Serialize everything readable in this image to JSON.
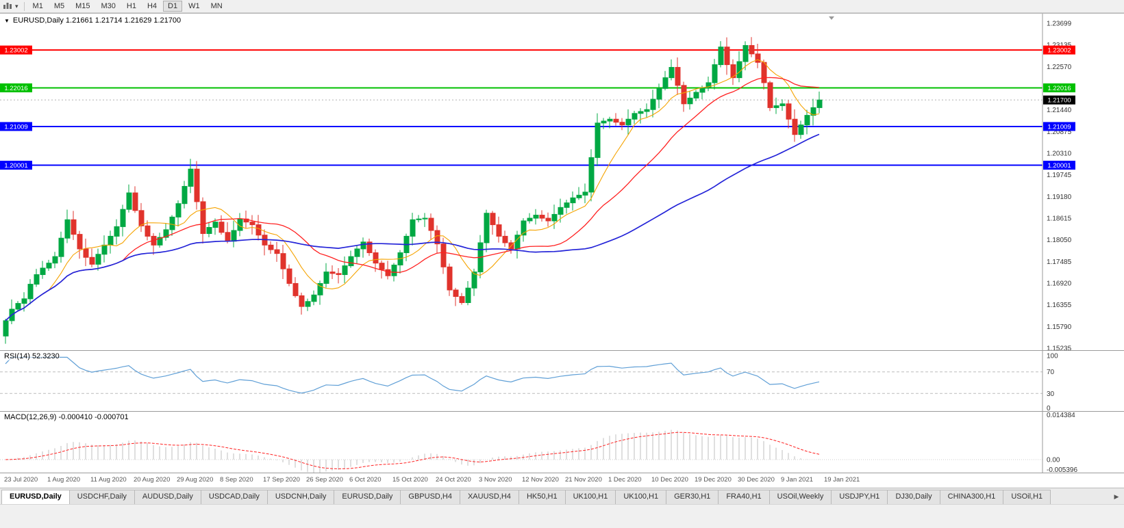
{
  "toolbar": {
    "timeframes": [
      "M1",
      "M5",
      "M15",
      "M30",
      "H1",
      "H4",
      "D1",
      "W1",
      "MN"
    ],
    "active": "D1"
  },
  "chart": {
    "title_line": "EURUSD,Daily 1.21661 1.21714 1.21629 1.21700",
    "current_price_label": "1.21700",
    "price_axis": [
      "1.23699",
      "1.23135",
      "1.22570",
      "1.22005",
      "1.21440",
      "1.20875",
      "1.20310",
      "1.19745",
      "1.19180",
      "1.18615",
      "1.18050",
      "1.17485",
      "1.16920",
      "1.16355",
      "1.15790",
      "1.15235"
    ]
  },
  "chart_data": {
    "type": "candlestick",
    "symbol": "EURUSD",
    "timeframe": "Daily",
    "ohlc_display": {
      "open": "1.21661",
      "high": "1.21714",
      "low": "1.21629",
      "close": "1.21700"
    },
    "price_range": [
      1.15235,
      1.23699
    ],
    "x_labels": [
      "23 Jul 2020",
      "1 Aug 2020",
      "11 Aug 2020",
      "20 Aug 2020",
      "29 Aug 2020",
      "8 Sep 2020",
      "17 Sep 2020",
      "26 Sep 2020",
      "6 Oct 2020",
      "15 Oct 2020",
      "24 Oct 2020",
      "3 Nov 2020",
      "12 Nov 2020",
      "21 Nov 2020",
      "1 Dec 2020",
      "10 Dec 2020",
      "19 Dec 2020",
      "30 Dec 2020",
      "9 Jan 2021",
      "19 Jan 2021"
    ],
    "closes": [
      1.1595,
      1.1625,
      1.164,
      1.1652,
      1.169,
      1.1715,
      1.1732,
      1.1745,
      1.1762,
      1.181,
      1.1858,
      1.182,
      1.1782,
      1.176,
      1.1742,
      1.1768,
      1.1792,
      1.1815,
      1.184,
      1.1885,
      1.1928,
      1.1882,
      1.1842,
      1.1815,
      1.1792,
      1.1812,
      1.1832,
      1.1865,
      1.19,
      1.1945,
      1.199,
      1.1905,
      1.1822,
      1.1838,
      1.1852,
      1.1825,
      1.1802,
      1.183,
      1.186,
      1.1852,
      1.1845,
      1.1818,
      1.1792,
      1.178,
      1.177,
      1.173,
      1.1692,
      1.166,
      1.1632,
      1.1645,
      1.1662,
      1.1692,
      1.1722,
      1.1718,
      1.1715,
      1.1738,
      1.1762,
      1.1782,
      1.18,
      1.1772,
      1.1745,
      1.1728,
      1.1712,
      1.174,
      1.1772,
      1.1815,
      1.1858,
      1.186,
      1.1862,
      1.183,
      1.1795,
      1.1735,
      1.1675,
      1.1658,
      1.1642,
      1.168,
      1.1722,
      1.1798,
      1.1875,
      1.1845,
      1.1815,
      1.1798,
      1.1782,
      1.1818,
      1.1855,
      1.1862,
      1.187,
      1.1862,
      1.1855,
      1.1872,
      1.189,
      1.1902,
      1.1915,
      1.1922,
      1.193,
      1.202,
      1.211,
      1.2115,
      1.212,
      1.2112,
      1.2105,
      1.212,
      1.2135,
      1.214,
      1.2145,
      1.2172,
      1.22,
      1.2228,
      1.2255,
      1.2208,
      1.216,
      1.2175,
      1.219,
      1.2202,
      1.2215,
      1.2262,
      1.2308,
      1.2262,
      1.2228,
      1.227,
      1.2312,
      1.229,
      1.2268,
      1.2215,
      1.215,
      1.2155,
      1.216,
      1.212,
      1.208,
      1.2105,
      1.213,
      1.215,
      1.217
    ],
    "current_price": 1.217,
    "levels": [
      {
        "price": 1.23002,
        "label": "1.23002",
        "color": "#ff0000"
      },
      {
        "price": 1.22016,
        "label": "1.22016",
        "color": "#00c000"
      },
      {
        "price": 1.21009,
        "label": "1.21009",
        "color": "#0000ff"
      },
      {
        "price": 1.20001,
        "label": "1.20001",
        "color": "#0000ff"
      }
    ],
    "moving_averages": [
      {
        "period": 8,
        "color": "#f5a300",
        "width": 1.1
      },
      {
        "period": 20,
        "color": "#ff2020",
        "width": 1.3
      },
      {
        "period": 55,
        "color": "#2424d8",
        "width": 1.7
      }
    ],
    "colors": {
      "up": "#00a843",
      "down": "#e0332c"
    },
    "indicators": {
      "rsi": {
        "label": "RSI(14) 52.3230",
        "period": 14,
        "value": 52.323,
        "levels": [
          100,
          70,
          30,
          0
        ]
      },
      "macd": {
        "label": "MACD(12,26,9) -0.000410 -0.000701",
        "fast": 12,
        "slow": 26,
        "signal": 9,
        "values": [
          -0.00041,
          -0.000701
        ],
        "axis_range": [
          -0.005396,
          0.014384
        ]
      }
    }
  },
  "rsi_panel": {
    "label": "RSI(14) 52.3230",
    "axis": [
      "100",
      "70",
      "30",
      "0"
    ]
  },
  "macd_panel": {
    "label": "MACD(12,26,9) -0.000410 -0.000701",
    "axis": [
      "0.014384",
      "0.00",
      "-0.005396"
    ]
  },
  "tabbar": {
    "tabs": [
      "EURUSD,Daily",
      "USDCHF,Daily",
      "AUDUSD,Daily",
      "USDCAD,Daily",
      "USDCNH,Daily",
      "EURUSD,Daily",
      "GBPUSD,H4",
      "XAUUSD,H4",
      "HK50,H1",
      "UK100,H1",
      "UK100,H1",
      "GER30,H1",
      "FRA40,H1",
      "USOil,Weekly",
      "USDJPY,H1",
      "DJ30,Daily",
      "CHINA300,H1",
      "USOil,H1"
    ],
    "active_index": 0,
    "scroll_right": "▶"
  }
}
